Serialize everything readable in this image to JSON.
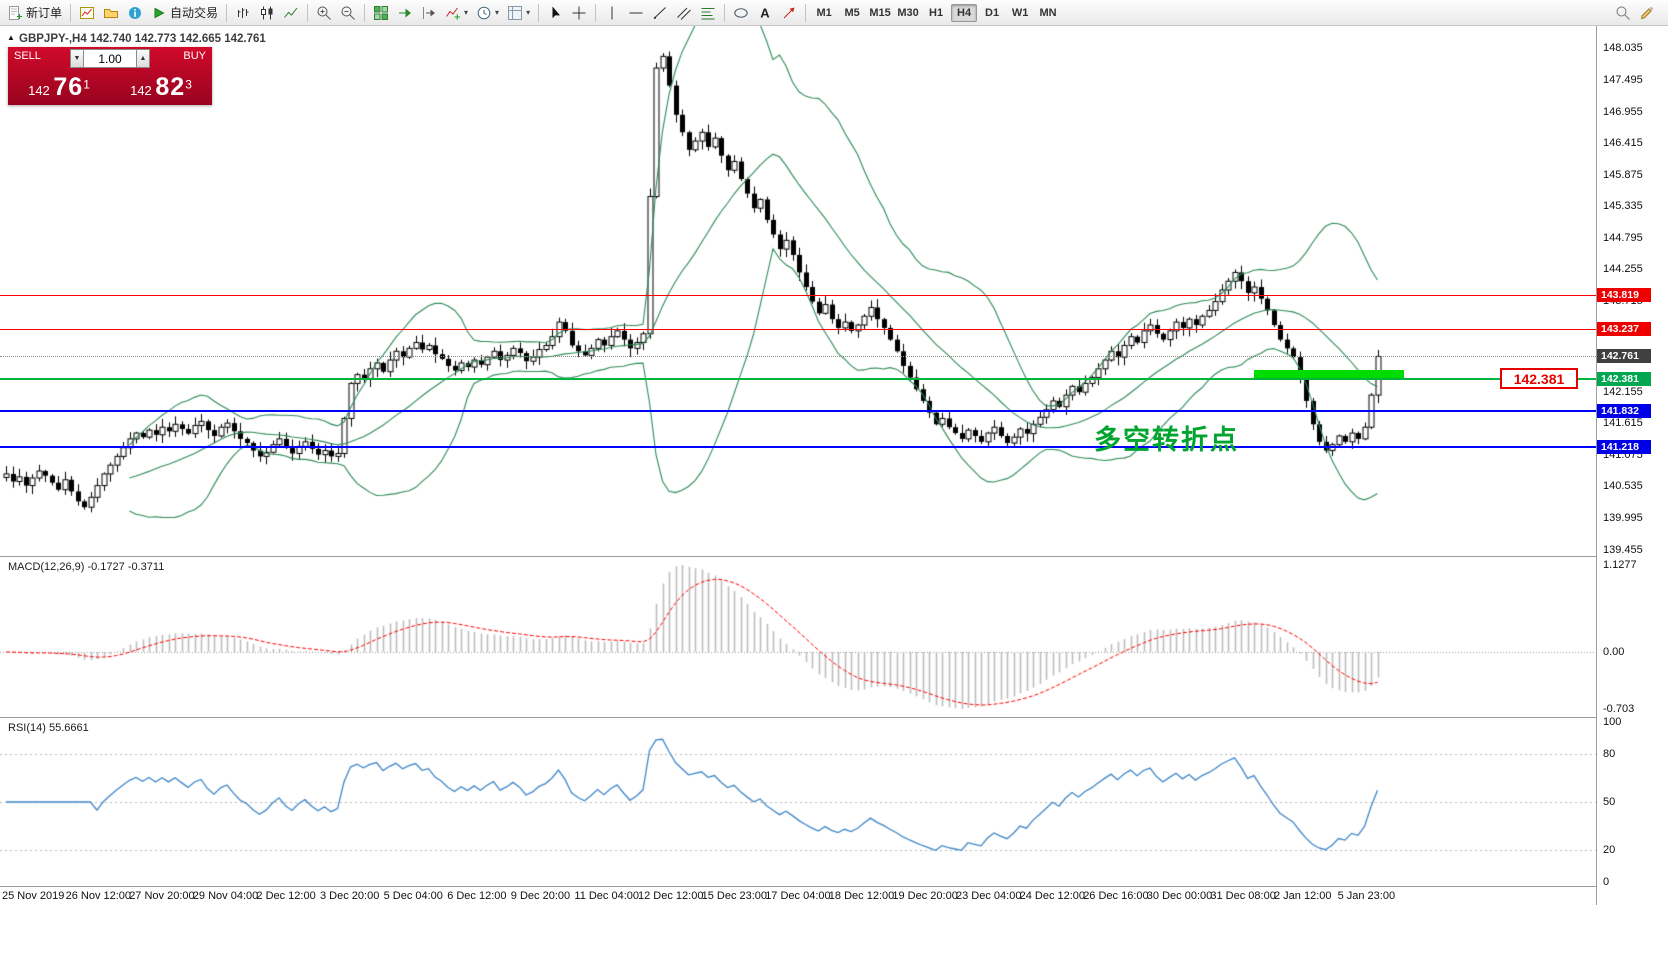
{
  "chart_header": "GBPJPY-,H4  142.740 142.773 142.665 142.761",
  "icons": {
    "dropdown": "▾",
    "caret_up": "▲",
    "caret_down": "▼",
    "oct_toggle": "▲"
  },
  "toolbar": {
    "items": [
      {
        "name": "new-order-button",
        "icon": "new-order",
        "label": "新订单"
      },
      {
        "sep": true
      },
      {
        "name": "new-chart-button",
        "icon": "new-chart"
      },
      {
        "name": "profiles-button",
        "icon": "profiles"
      },
      {
        "name": "data-window-button",
        "icon": "data-window"
      },
      {
        "name": "autotrading-button",
        "icon": "autotrading",
        "label": "自动交易"
      },
      {
        "sep": true
      },
      {
        "name": "bar-chart-button",
        "icon": "bar-chart"
      },
      {
        "name": "candlestick-chart-button",
        "icon": "candlesticks"
      },
      {
        "name": "line-chart-button",
        "icon": "line-chart"
      },
      {
        "sep": true
      },
      {
        "name": "zoom-in-button",
        "icon": "zoom-in"
      },
      {
        "name": "zoom-out-button",
        "icon": "zoom-out"
      },
      {
        "sep": true
      },
      {
        "name": "tile-windows-button",
        "icon": "tile-windows"
      },
      {
        "name": "auto-scroll-button",
        "icon": "auto-scroll"
      },
      {
        "name": "chart-shift-button",
        "icon": "chart-shift"
      },
      {
        "name": "indicators-button",
        "icon": "indicators",
        "dropdown": true
      },
      {
        "name": "periods-button",
        "icon": "periods",
        "dropdown": true
      },
      {
        "name": "templates-button",
        "icon": "templates",
        "dropdown": true
      },
      {
        "sep": true
      },
      {
        "name": "cursor-button",
        "icon": "cursor"
      },
      {
        "name": "crosshair-button",
        "icon": "crosshair"
      },
      {
        "sep": true
      },
      {
        "name": "vertical-line-button",
        "icon": "vertical-line"
      },
      {
        "name": "horizontal-line-button",
        "icon": "horizontal-line"
      },
      {
        "name": "trendline-button",
        "icon": "trendline"
      },
      {
        "name": "equidistant-channel-button",
        "icon": "equidistant-channel"
      },
      {
        "name": "fibonacci-button",
        "icon": "fibonacci"
      },
      {
        "sep": true
      },
      {
        "name": "shapes-button",
        "icon": "shapes"
      },
      {
        "name": "text-button",
        "icon": "text"
      },
      {
        "name": "arrows-button",
        "icon": "arrows"
      },
      {
        "sep": true
      }
    ],
    "timeframes": [
      "M1",
      "M5",
      "M15",
      "M30",
      "H1",
      "H4",
      "D1",
      "W1",
      "MN"
    ],
    "active_timeframe": "H4",
    "right_items": [
      {
        "name": "search-button",
        "icon": "search"
      },
      {
        "name": "edit-button",
        "icon": "edit"
      }
    ]
  },
  "one_click": {
    "sell_label": "SELL",
    "buy_label": "BUY",
    "volume": "1.00",
    "sell_price_prefix": "142 ",
    "sell_price_big": "76",
    "sell_price_sup": "1",
    "buy_price_prefix": "142 ",
    "buy_price_big": "82",
    "buy_price_sup": "3"
  },
  "indicators": {
    "macd_label": "MACD(12,26,9) -0.1727 -0.3711",
    "macd_axis": [
      "1.1277",
      "0.00",
      "-0.703"
    ],
    "rsi_label": "RSI(14) 55.6661",
    "rsi_axis": [
      "100",
      "80",
      "50",
      "20",
      "0"
    ],
    "rsi_levels": [
      80,
      50,
      20
    ]
  },
  "annotations": {
    "price_tag_text": "142.381",
    "turning_point_text": "多空转折点"
  },
  "chart_data": {
    "type": "candlestick",
    "title": "GBPJPY- H4",
    "symbol": "GBPJPY-",
    "timeframe": "H4",
    "current_ohlc": {
      "open": 142.74,
      "high": 142.773,
      "low": 142.665,
      "close": 142.761
    },
    "current_price": 142.761,
    "price_axis_ticks": [
      148.035,
      147.495,
      146.955,
      146.415,
      145.875,
      145.335,
      144.795,
      144.255,
      143.715,
      142.155,
      141.615,
      141.075,
      140.535,
      139.995,
      139.455
    ],
    "levels": [
      {
        "price": 143.819,
        "color": "#FF0000",
        "weight": 1
      },
      {
        "price": 143.237,
        "color": "#FF0000",
        "weight": 1
      },
      {
        "price": 142.381,
        "color": "#00B43C",
        "weight": 2
      },
      {
        "price": 141.832,
        "color": "#0000FF",
        "weight": 2
      },
      {
        "price": 141.218,
        "color": "#0000FF",
        "weight": 2
      }
    ],
    "badges": [
      {
        "price": 143.819,
        "color": "#EE0000"
      },
      {
        "price": 143.237,
        "color": "#EE0000"
      },
      {
        "price": 142.761,
        "color": "#3F3F3F"
      },
      {
        "price": 142.381,
        "color": "#00A650"
      },
      {
        "price": 141.832,
        "color": "#0000E8"
      },
      {
        "price": 141.218,
        "color": "#0000E8"
      }
    ],
    "bollinger": {
      "period": 20,
      "deviation": 2,
      "color": "#2E8B57"
    },
    "thick_line_price": 142.46,
    "time_labels": [
      "25 Nov 2019",
      "26 Nov 12:00",
      "27 Nov 20:00",
      "29 Nov 04:00",
      "2 Dec 12:00",
      "3 Dec 20:00",
      "5 Dec 04:00",
      "6 Dec 12:00",
      "9 Dec 20:00",
      "11 Dec 04:00",
      "12 Dec 12:00",
      "15 Dec 23:00",
      "17 Dec 04:00",
      "18 Dec 12:00",
      "19 Dec 20:00",
      "23 Dec 04:00",
      "24 Dec 12:00",
      "26 Dec 16:00",
      "30 Dec 00:00",
      "31 Dec 08:00",
      "2 Jan 12:00",
      "5 Jan 23:00"
    ],
    "closes": [
      140.75,
      140.62,
      140.7,
      140.55,
      140.68,
      140.8,
      140.72,
      140.6,
      140.48,
      140.65,
      140.45,
      140.28,
      140.18,
      140.35,
      140.55,
      140.75,
      140.9,
      141.05,
      141.2,
      141.35,
      141.45,
      141.38,
      141.5,
      141.42,
      141.55,
      141.48,
      141.6,
      141.52,
      141.44,
      141.58,
      141.65,
      141.5,
      141.4,
      141.55,
      141.62,
      141.48,
      141.35,
      141.28,
      141.15,
      141.05,
      141.12,
      141.25,
      141.35,
      141.2,
      141.1,
      141.22,
      141.3,
      141.18,
      141.08,
      141.15,
      141.05,
      141.1,
      141.7,
      142.3,
      142.45,
      142.38,
      142.55,
      142.65,
      142.5,
      142.7,
      142.85,
      142.75,
      142.9,
      143.0,
      142.88,
      142.95,
      142.8,
      142.72,
      142.6,
      142.52,
      142.65,
      142.58,
      142.7,
      142.62,
      142.75,
      142.85,
      142.7,
      142.78,
      142.9,
      142.82,
      142.68,
      142.75,
      142.88,
      142.95,
      143.1,
      143.35,
      143.2,
      142.95,
      142.85,
      142.78,
      142.9,
      143.05,
      142.95,
      143.1,
      143.2,
      143.05,
      142.9,
      143.0,
      143.15,
      145.5,
      147.7,
      147.9,
      147.4,
      146.9,
      146.6,
      146.3,
      146.45,
      146.6,
      146.35,
      146.5,
      146.2,
      145.95,
      146.1,
      145.8,
      145.55,
      145.3,
      145.45,
      145.1,
      144.85,
      144.6,
      144.75,
      144.5,
      144.2,
      143.95,
      143.7,
      143.5,
      143.65,
      143.4,
      143.25,
      143.35,
      143.2,
      143.3,
      143.45,
      143.6,
      143.4,
      143.25,
      143.05,
      142.85,
      142.6,
      142.4,
      142.2,
      142.0,
      141.8,
      141.6,
      141.7,
      141.55,
      141.45,
      141.35,
      141.5,
      141.4,
      141.3,
      141.45,
      141.55,
      141.4,
      141.28,
      141.38,
      141.52,
      141.44,
      141.6,
      141.72,
      141.85,
      142.0,
      141.9,
      142.1,
      142.25,
      142.15,
      142.3,
      142.4,
      142.55,
      142.7,
      142.85,
      142.75,
      142.95,
      143.1,
      143.0,
      143.2,
      143.3,
      143.15,
      143.05,
      143.2,
      143.35,
      143.25,
      143.4,
      143.3,
      143.45,
      143.55,
      143.7,
      143.9,
      144.05,
      144.2,
      144.05,
      143.85,
      143.95,
      143.75,
      143.55,
      143.3,
      143.05,
      142.9,
      142.75,
      142.4,
      142.0,
      141.6,
      141.3,
      141.15,
      141.25,
      141.4,
      141.3,
      141.45,
      141.35,
      141.55,
      142.1,
      142.761
    ]
  }
}
